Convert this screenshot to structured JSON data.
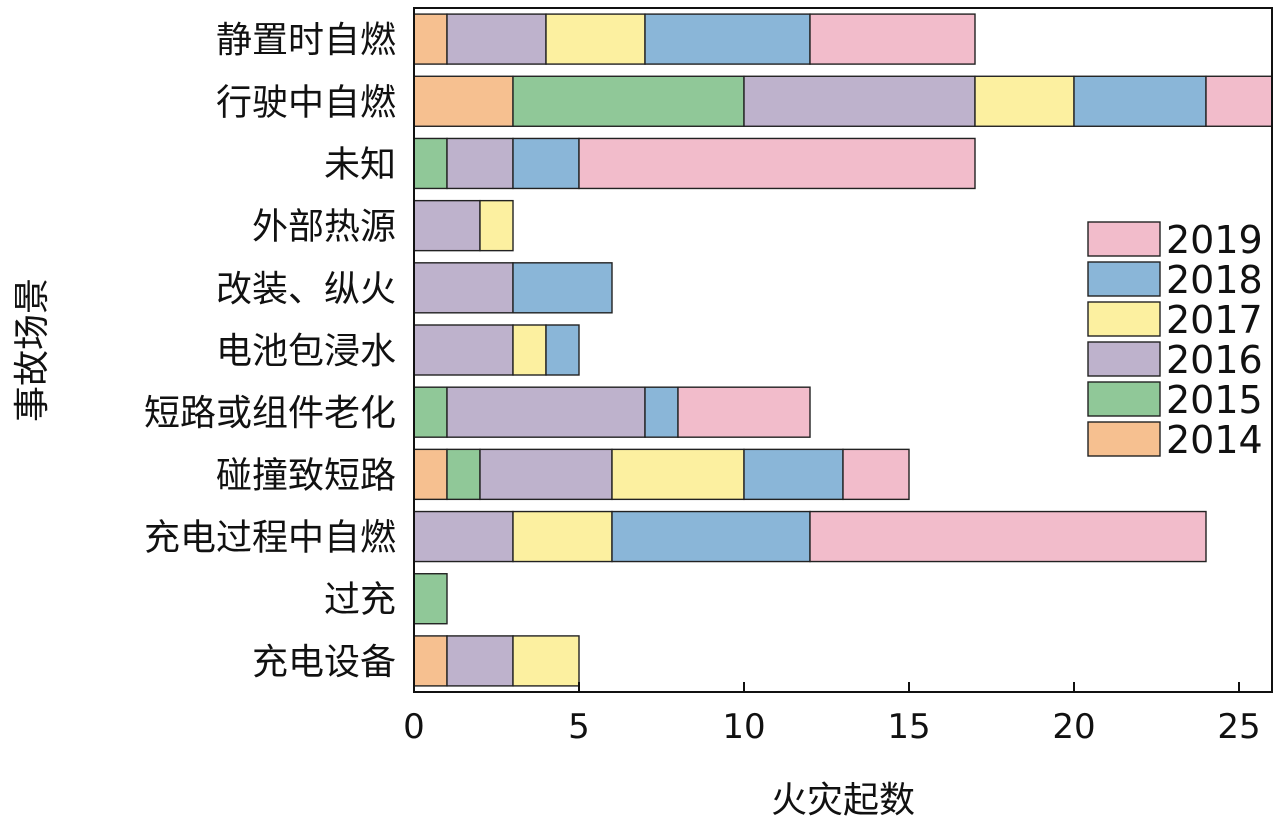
{
  "chart_data": {
    "type": "bar",
    "orientation": "horizontal",
    "stacked": true,
    "xlabel": "火灾起数",
    "ylabel": "事故场景",
    "xlim": [
      0,
      26
    ],
    "xticks": [
      0,
      5,
      10,
      15,
      20,
      25
    ],
    "categories": [
      "静置时自燃",
      "行驶中自燃",
      "未知",
      "外部热源",
      "改装、纵火",
      "电池包浸水",
      "短路或组件老化",
      "碰撞致短路",
      "充电过程中自燃",
      "过充",
      "充电设备"
    ],
    "series": [
      {
        "name": "2014",
        "color": "#f6c090",
        "values": [
          1,
          3,
          0,
          0,
          0,
          0,
          0,
          1,
          0,
          0,
          1
        ]
      },
      {
        "name": "2015",
        "color": "#90c898",
        "values": [
          0,
          7,
          1,
          0,
          0,
          0,
          1,
          1,
          0,
          1,
          0
        ]
      },
      {
        "name": "2016",
        "color": "#beb2cc",
        "values": [
          3,
          7,
          2,
          2,
          3,
          3,
          6,
          4,
          3,
          0,
          2
        ]
      },
      {
        "name": "2017",
        "color": "#fcf0a0",
        "values": [
          3,
          3,
          0,
          1,
          0,
          1,
          0,
          4,
          3,
          0,
          2
        ]
      },
      {
        "name": "2018",
        "color": "#8ab6d8",
        "values": [
          5,
          4,
          2,
          0,
          3,
          1,
          1,
          3,
          6,
          0,
          0
        ]
      },
      {
        "name": "2019",
        "color": "#f2bccb",
        "values": [
          5,
          2,
          12,
          0,
          0,
          0,
          4,
          2,
          12,
          0,
          0
        ]
      }
    ],
    "legend_order": [
      "2019",
      "2018",
      "2017",
      "2016",
      "2015",
      "2014"
    ],
    "legend_position": "right",
    "grid": false
  }
}
